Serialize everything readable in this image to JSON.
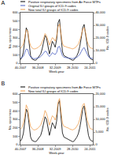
{
  "chart_data": [
    {
      "type": "line",
      "title": "A",
      "x_label": "Week-year",
      "y_label": "No. specimens",
      "y2_label": "No. ICD-9 codes",
      "grid": false,
      "legend": "top left",
      "categories": [
        "40-2007",
        null,
        null,
        null,
        null,
        null,
        null,
        null,
        null,
        null,
        null,
        null,
        "36-2008",
        null,
        null,
        null,
        null,
        null,
        null,
        null,
        null,
        null,
        null,
        null,
        "32-2009",
        null,
        null,
        null,
        null,
        null,
        null,
        null,
        null,
        null,
        null,
        null,
        "28-2010",
        null,
        null,
        null,
        null,
        null,
        null,
        null,
        null,
        null,
        null,
        null,
        "24-2011",
        null,
        null
      ],
      "ylim": [
        0,
        600
      ],
      "yticks": [
        0,
        100,
        200,
        300,
        400,
        500,
        600
      ],
      "y2lim": [
        0,
        40000
      ],
      "y2ticks": [
        0,
        {
          "value": 10000,
          "label": "10,000"
        },
        {
          "value": 20000,
          "label": "20,000"
        },
        {
          "value": 30000,
          "label": "30,000"
        },
        {
          "value": 40000,
          "label": "40,000"
        }
      ],
      "series": [
        {
          "name": "Positive respiratory specimens from Air Force MTFs",
          "color": "#000000",
          "line_style": "solid",
          "values": [
            40,
            70,
            130,
            260,
            420,
            380,
            200,
            90,
            50,
            40,
            35,
            40,
            60,
            80,
            110,
            170,
            240,
            330,
            300,
            200,
            110,
            180,
            260,
            230,
            190,
            280,
            480,
            520,
            300,
            140,
            90,
            80,
            70,
            60,
            50,
            40,
            35,
            40,
            60,
            90,
            130,
            200,
            300,
            420,
            460,
            350,
            200,
            110,
            60,
            45,
            40
          ]
        },
        {
          "name": "Original ILI groups of ICD-9 codes",
          "color": "#4a5fc1",
          "line_style": "solid",
          "axis": "y2",
          "values": [
            3800,
            4500,
            5500,
            8300,
            11200,
            10800,
            6900,
            4900,
            4100,
            3700,
            3600,
            3900,
            4300,
            4500,
            5300,
            6300,
            7900,
            9500,
            9100,
            6800,
            5300,
            6500,
            8400,
            7500,
            6900,
            8500,
            12800,
            13300,
            8800,
            5900,
            4700,
            4600,
            4300,
            4200,
            3900,
            3800,
            3600,
            3900,
            4300,
            4700,
            5700,
            6900,
            9200,
            11300,
            12400,
            9800,
            7100,
            5100,
            4300,
            3900,
            3700
          ]
        },
        {
          "name": "New total ILI groups of ICD-9 codes",
          "color": "#f0a050",
          "line_style": "solid",
          "axis": "y2",
          "values": [
            11500,
            13000,
            15000,
            20600,
            26500,
            25500,
            17800,
            13800,
            12100,
            11400,
            11300,
            11800,
            12300,
            13400,
            14200,
            17000,
            19400,
            23400,
            21800,
            18200,
            14300,
            17400,
            20200,
            19400,
            17400,
            21400,
            29000,
            31000,
            21800,
            15800,
            13400,
            13300,
            12700,
            12500,
            11900,
            11700,
            11300,
            11700,
            12300,
            13800,
            15000,
            18200,
            21800,
            27000,
            28200,
            24200,
            17800,
            14600,
            12300,
            11900,
            11500
          ]
        }
      ]
    },
    {
      "type": "line",
      "title": "B",
      "x_label": "Week-year",
      "y_label": "No. specimens",
      "y2_label": "No. ICD-9 codes",
      "grid": false,
      "legend": "top left",
      "categories": [
        "40-2007",
        null,
        null,
        null,
        null,
        null,
        null,
        null,
        null,
        null,
        null,
        null,
        "36-2008",
        null,
        null,
        null,
        null,
        null,
        null,
        null,
        null,
        null,
        null,
        null,
        "32-2009",
        null,
        null,
        null,
        null,
        null,
        null,
        null,
        null,
        null,
        null,
        null,
        "28-2010",
        null,
        null,
        null,
        null,
        null,
        null,
        null,
        null,
        null,
        null,
        null,
        "24-2011",
        null,
        null
      ],
      "ylim": [
        0,
        600
      ],
      "yticks": [
        0,
        100,
        200,
        300,
        400,
        500,
        600
      ],
      "y2lim": [
        0,
        20000
      ],
      "y2ticks": [
        0,
        {
          "value": 5000,
          "label": "5,000"
        },
        {
          "value": 10000,
          "label": "10,000"
        },
        {
          "value": 15000,
          "label": "15,000"
        },
        {
          "value": 20000,
          "label": "20,000"
        }
      ],
      "series": [
        {
          "name": "Positive respiratory specimens from Air Force MTFs",
          "color": "#000000",
          "line_style": "solid",
          "values": [
            40,
            70,
            130,
            260,
            420,
            380,
            200,
            90,
            50,
            40,
            35,
            40,
            60,
            80,
            110,
            170,
            240,
            330,
            300,
            200,
            110,
            180,
            260,
            230,
            190,
            280,
            480,
            520,
            300,
            140,
            90,
            80,
            70,
            60,
            50,
            40,
            35,
            40,
            60,
            90,
            130,
            200,
            300,
            420,
            460,
            350,
            200,
            110,
            60,
            45,
            40
          ]
        },
        {
          "name": "New total ILI groups of ICD-9 codes",
          "color": "#f0a050",
          "line_style": "solid",
          "axis": "y2",
          "values": [
            6100,
            6700,
            8400,
            11300,
            15700,
            14300,
            10100,
            7200,
            6400,
            5900,
            5800,
            6100,
            6400,
            7100,
            7700,
            9400,
            10900,
            13500,
            12300,
            10200,
            7700,
            9600,
            11400,
            10900,
            9700,
            12100,
            16800,
            18200,
            12300,
            8600,
            7200,
            7100,
            6700,
            6600,
            6200,
            6100,
            5800,
            6100,
            6400,
            7400,
            8200,
            10100,
            12400,
            15600,
            16300,
            13900,
            9900,
            7900,
            6400,
            6200,
            5900
          ]
        }
      ]
    }
  ]
}
